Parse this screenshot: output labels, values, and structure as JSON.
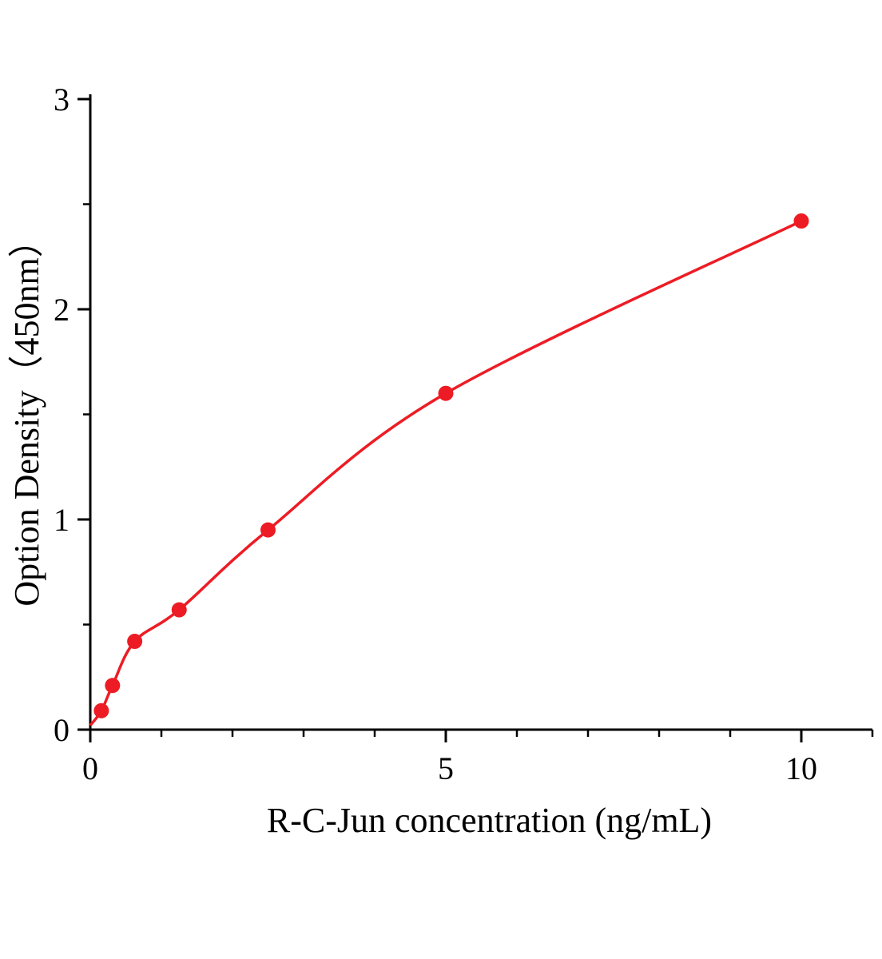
{
  "chart_data": {
    "type": "scatter",
    "title": "",
    "xlabel": "R-C-Jun concentration (ng/mL)",
    "ylabel": "Option Density（450nm）",
    "x": [
      0.156,
      0.3125,
      0.625,
      1.25,
      2.5,
      5,
      10
    ],
    "y": [
      0.09,
      0.21,
      0.42,
      0.57,
      0.95,
      1.6,
      2.42
    ],
    "curve_start": {
      "x": 0,
      "y": 0.02
    },
    "xlim": [
      0,
      11
    ],
    "ylim": [
      0,
      3
    ],
    "x_major_ticks": [
      0,
      5,
      10
    ],
    "x_minor_step": 1,
    "y_major_ticks": [
      0,
      1,
      2,
      3
    ],
    "y_minor_step": 0.5,
    "grid": false,
    "legend_position": "none",
    "point_color": "#ed1c24",
    "line_color": "#ed1c24",
    "axis_color": "#000000",
    "background_color": "#ffffff"
  }
}
